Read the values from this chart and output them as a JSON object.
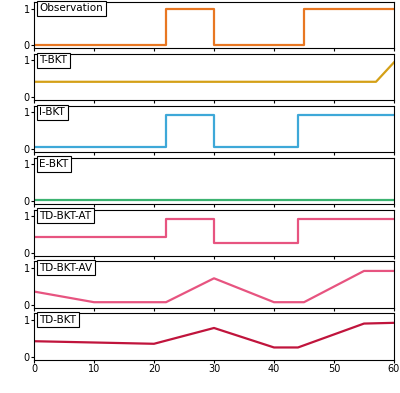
{
  "subplots": [
    {
      "label": "Observation",
      "color": "#E87722",
      "x": [
        0,
        22,
        22,
        30,
        30,
        45,
        45,
        60
      ],
      "y": [
        0,
        0,
        1,
        1,
        0,
        0,
        1,
        1
      ]
    },
    {
      "label": "T-BKT",
      "color": "#D4A017",
      "x": [
        0,
        57,
        60
      ],
      "y": [
        0.42,
        0.42,
        0.95
      ]
    },
    {
      "label": "I-BKT",
      "color": "#3EA8D8",
      "x": [
        0,
        22,
        22,
        30,
        30,
        44,
        44,
        60
      ],
      "y": [
        0.07,
        0.07,
        0.93,
        0.93,
        0.07,
        0.07,
        0.93,
        0.93
      ]
    },
    {
      "label": "E-BKT",
      "color": "#3CB371",
      "x": [
        0,
        60
      ],
      "y": [
        0.02,
        0.02
      ]
    },
    {
      "label": "TD-BKT-AT",
      "color": "#E75480",
      "x": [
        0,
        22,
        22,
        30,
        30,
        44,
        44,
        60
      ],
      "y": [
        0.44,
        0.44,
        0.92,
        0.92,
        0.28,
        0.28,
        0.92,
        0.92
      ]
    },
    {
      "label": "TD-BKT-AV",
      "color": "#E75480",
      "x": [
        0,
        10,
        22,
        30,
        40,
        45,
        55,
        60
      ],
      "y": [
        0.36,
        0.07,
        0.07,
        0.72,
        0.07,
        0.07,
        0.92,
        0.92
      ]
    },
    {
      "label": "TD-BKT",
      "color": "#C0143C",
      "x": [
        0,
        20,
        30,
        40,
        44,
        55,
        60
      ],
      "y": [
        0.42,
        0.35,
        0.78,
        0.25,
        0.25,
        0.9,
        0.92
      ]
    }
  ],
  "xlim": [
    0,
    60
  ],
  "xticks": [
    0,
    10,
    20,
    30,
    40,
    50,
    60
  ],
  "yticks": [
    0,
    1
  ],
  "linewidth": 1.6,
  "label_fontsize": 7.5,
  "tick_fontsize": 7
}
